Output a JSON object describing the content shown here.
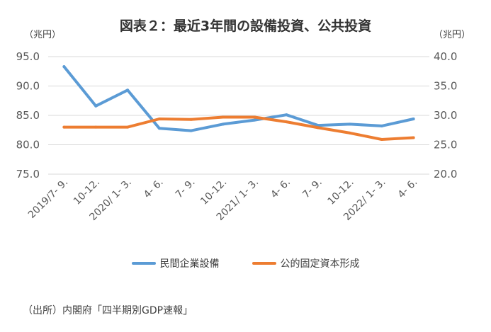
{
  "title": "図表２：最近3年間の設備投資、公共投資",
  "units": {
    "left": "（兆円）",
    "right": "（兆円）"
  },
  "source": "（出所）内閣府「四半期別GDP速報」",
  "colors": {
    "grid": "#d9d9d9",
    "axis_text": "#595959"
  },
  "chart_data": {
    "type": "line",
    "categories": [
      "2019/7- 9.",
      "10-12.",
      "2020/ 1- 3.",
      "4- 6.",
      "7- 9.",
      "10-12.",
      "2021/ 1- 3.",
      "4- 6.",
      "7- 9.",
      "10-12.",
      "2022/ 1- 3.",
      "4- 6."
    ],
    "y_left": {
      "ylim": [
        75,
        95
      ],
      "ticks": [
        "75.0",
        "80.0",
        "85.0",
        "90.0",
        "95.0"
      ]
    },
    "y_right": {
      "ylim": [
        20,
        40
      ],
      "ticks": [
        "20.0",
        "25.0",
        "30.0",
        "35.0",
        "40.0"
      ]
    },
    "grid": true,
    "legend_position": "bottom",
    "series": [
      {
        "name": "民間企業設備",
        "axis": "left",
        "color": "#5b9bd5",
        "values": [
          93.3,
          86.6,
          89.3,
          82.8,
          82.4,
          83.5,
          84.2,
          85.1,
          83.3,
          83.5,
          83.2,
          84.4
        ]
      },
      {
        "name": "公的固定資本形成",
        "axis": "right",
        "color": "#ed7d31",
        "values": [
          28.0,
          28.0,
          28.0,
          29.4,
          29.3,
          29.7,
          29.7,
          28.9,
          27.9,
          27.0,
          25.9,
          26.2
        ]
      }
    ]
  }
}
